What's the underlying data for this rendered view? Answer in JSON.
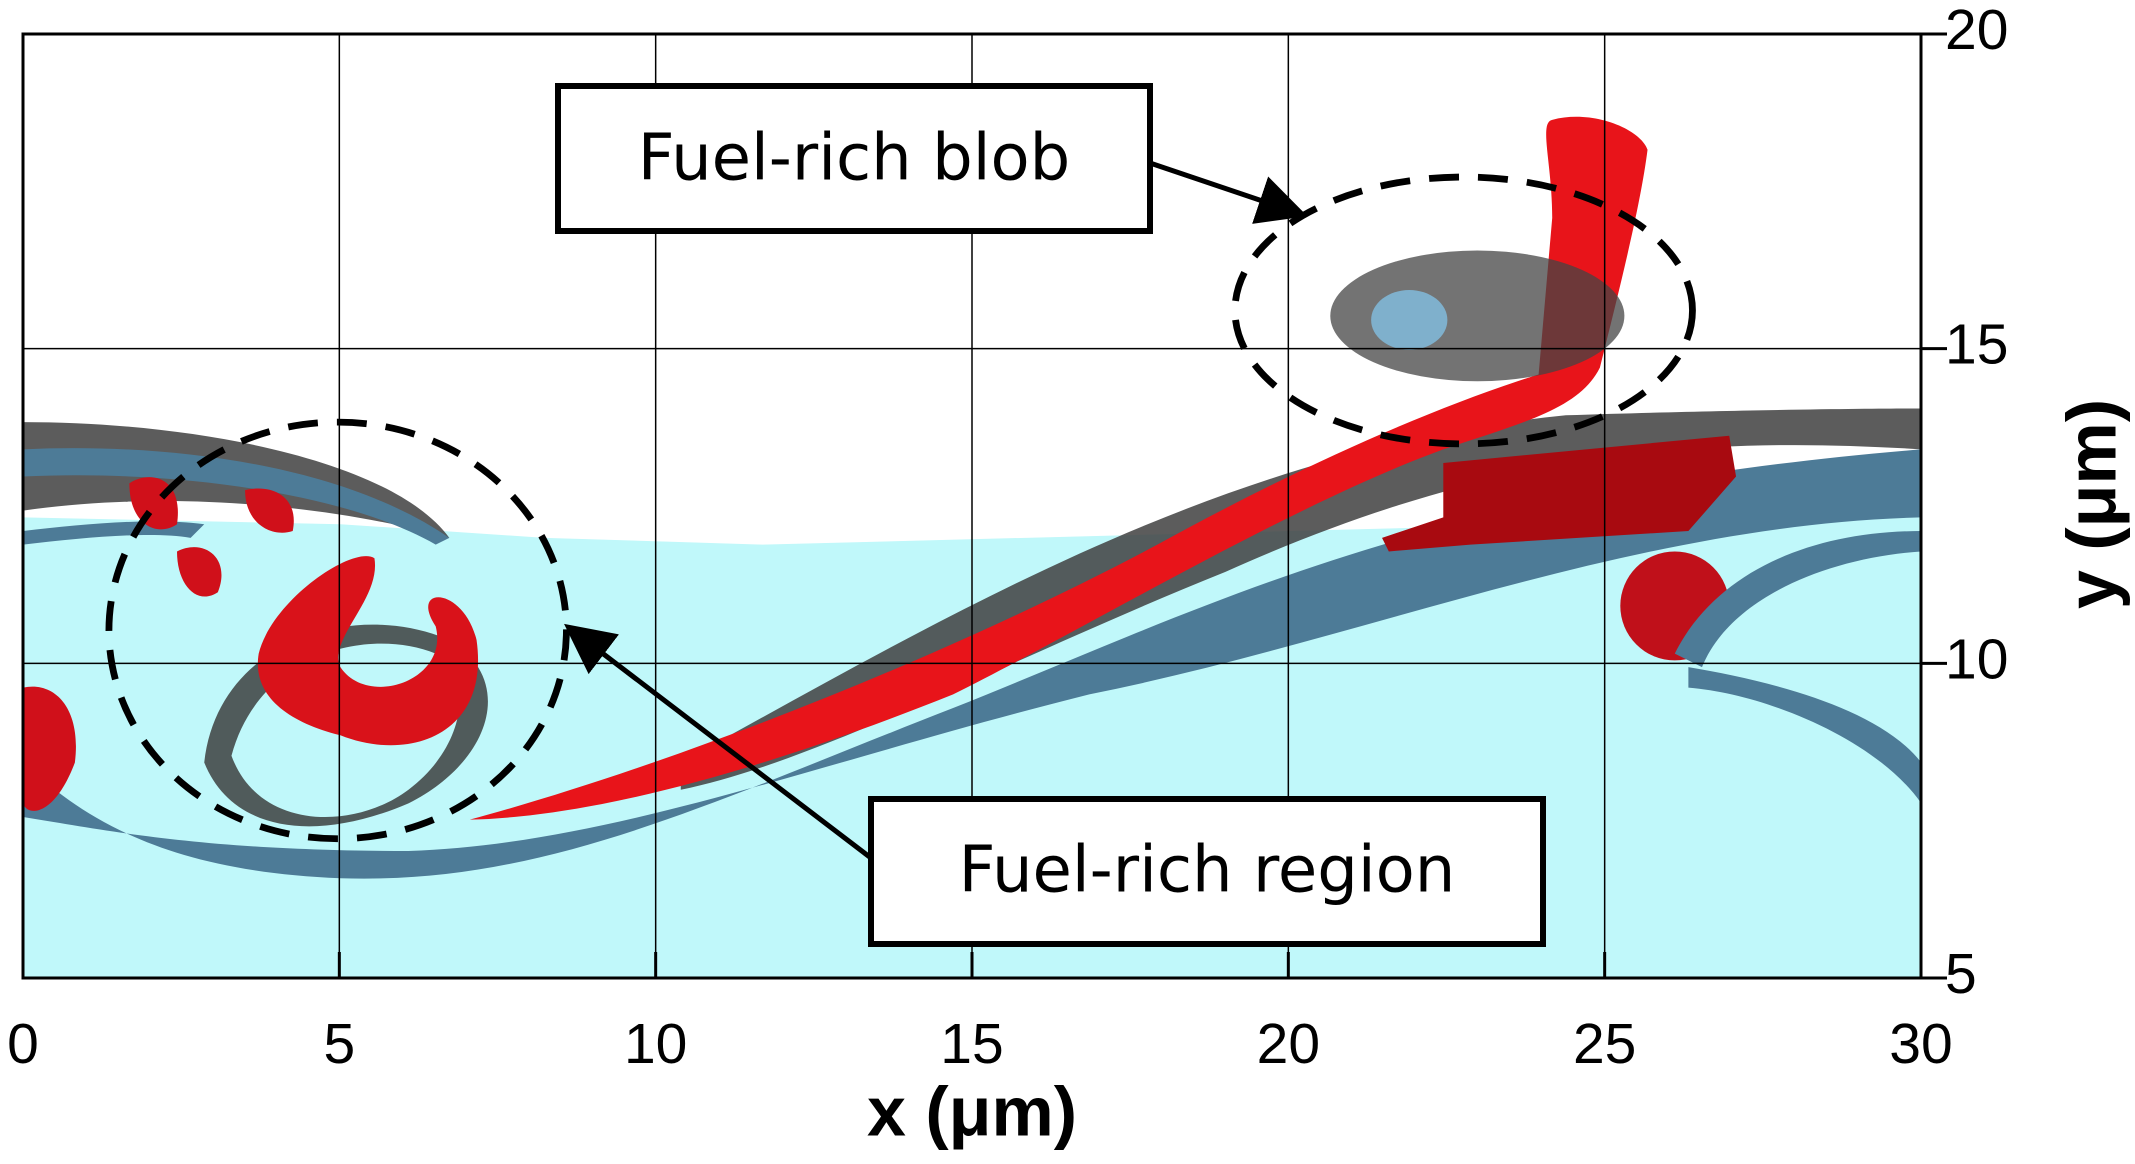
{
  "chart_data": {
    "type": "volume",
    "x_label": "x (μm)",
    "y_label": "y (μm)",
    "xlim": [
      0,
      30
    ],
    "ylim": [
      5,
      20
    ],
    "xticks": [
      0,
      5,
      10,
      15,
      20,
      25,
      30
    ],
    "yticks": [
      5,
      10,
      15,
      20
    ],
    "grid": true,
    "annotations": [
      "Fuel-rich blob",
      "Fuel-rich region"
    ]
  }
}
